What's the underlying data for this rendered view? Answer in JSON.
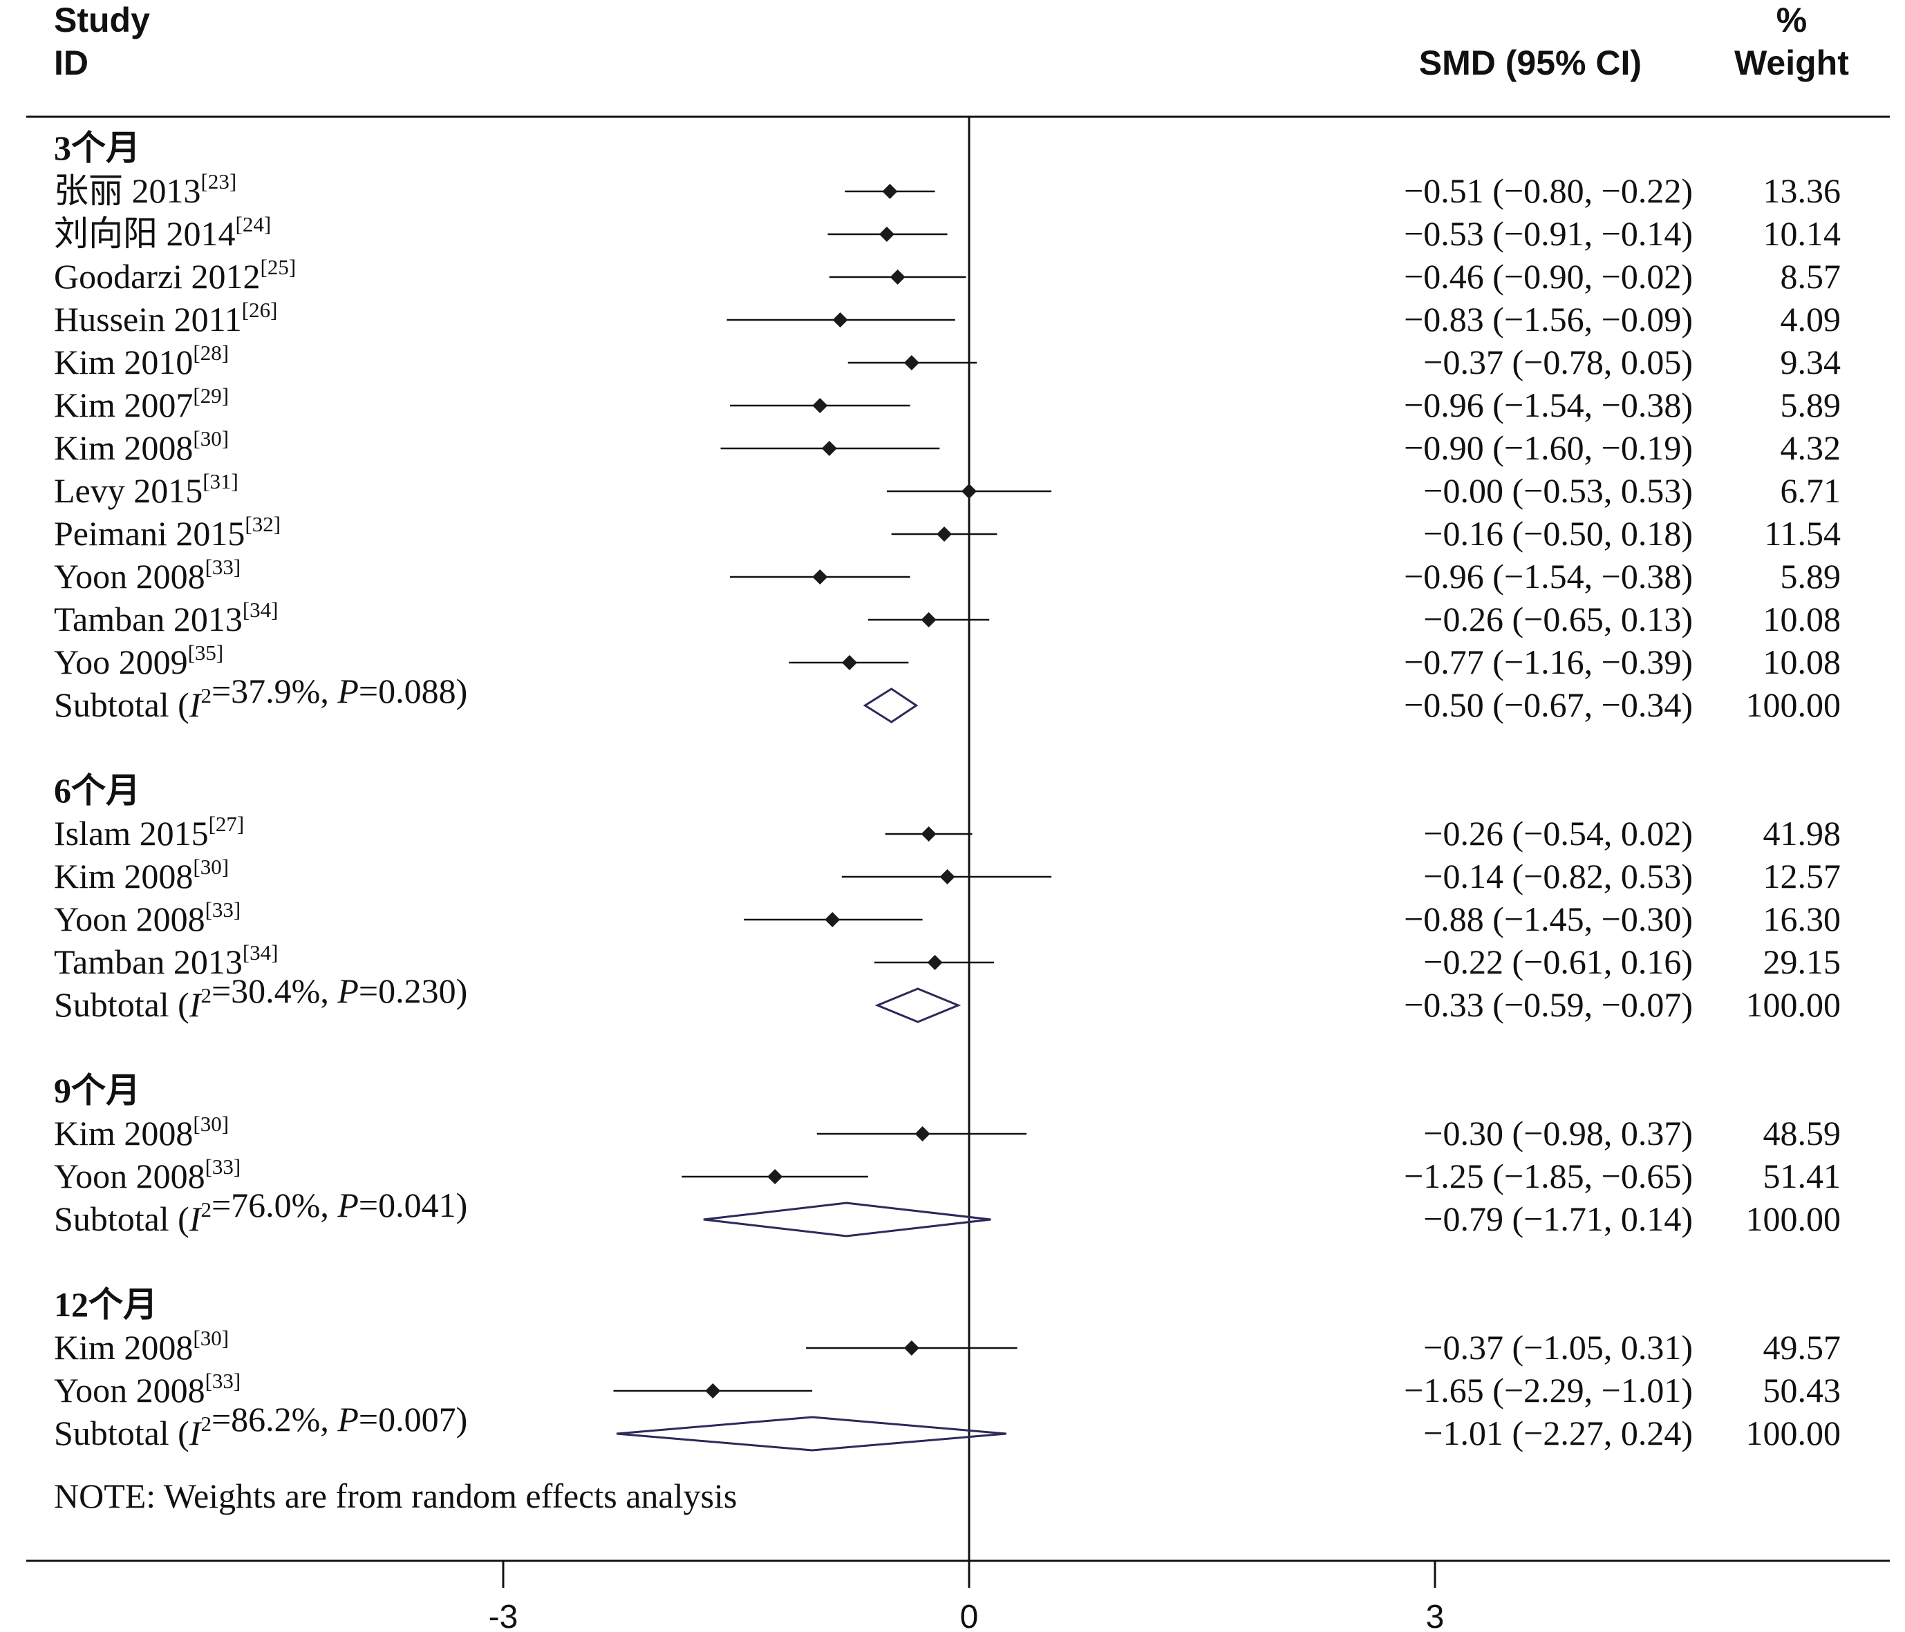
{
  "chart_data": {
    "type": "forest",
    "headers": {
      "study_line1": "Study",
      "study_line2": "ID",
      "effect": "SMD (95% CI)",
      "weight_line1": "%",
      "weight_line2": "Weight"
    },
    "xaxis": {
      "ticks": [
        -3,
        0,
        3
      ],
      "tick_labels": [
        "-3",
        "0",
        "3"
      ],
      "null_line": 0
    },
    "groups": [
      {
        "name": "3个月",
        "studies": [
          {
            "label": "张丽 2013",
            "ref": "[23]",
            "smd": -0.51,
            "lo": -0.8,
            "hi": -0.22,
            "ci_text": "−0.51 (−0.80, −0.22)",
            "weight": "13.36"
          },
          {
            "label": "刘向阳 2014",
            "ref": "[24]",
            "smd": -0.53,
            "lo": -0.91,
            "hi": -0.14,
            "ci_text": "−0.53 (−0.91, −0.14)",
            "weight": "10.14"
          },
          {
            "label": "Goodarzi 2012",
            "ref": "[25]",
            "smd": -0.46,
            "lo": -0.9,
            "hi": -0.02,
            "ci_text": "−0.46 (−0.90, −0.02)",
            "weight": "8.57"
          },
          {
            "label": "Hussein 2011",
            "ref": "[26]",
            "smd": -0.83,
            "lo": -1.56,
            "hi": -0.09,
            "ci_text": "−0.83 (−1.56, −0.09)",
            "weight": "4.09"
          },
          {
            "label": "Kim 2010",
            "ref": "[28]",
            "smd": -0.37,
            "lo": -0.78,
            "hi": 0.05,
            "ci_text": "−0.37 (−0.78, 0.05)",
            "weight": "9.34"
          },
          {
            "label": "Kim 2007",
            "ref": "[29]",
            "smd": -0.96,
            "lo": -1.54,
            "hi": -0.38,
            "ci_text": "−0.96 (−1.54, −0.38)",
            "weight": "5.89"
          },
          {
            "label": "Kim 2008",
            "ref": "[30]",
            "smd": -0.9,
            "lo": -1.6,
            "hi": -0.19,
            "ci_text": "−0.90 (−1.60, −0.19)",
            "weight": "4.32"
          },
          {
            "label": "Levy 2015",
            "ref": "[31]",
            "smd": 0.0,
            "lo": -0.53,
            "hi": 0.53,
            "ci_text": "−0.00 (−0.53, 0.53)",
            "weight": "6.71"
          },
          {
            "label": "Peimani 2015",
            "ref": "[32]",
            "smd": -0.16,
            "lo": -0.5,
            "hi": 0.18,
            "ci_text": "−0.16 (−0.50, 0.18)",
            "weight": "11.54"
          },
          {
            "label": "Yoon 2008",
            "ref": "[33]",
            "smd": -0.96,
            "lo": -1.54,
            "hi": -0.38,
            "ci_text": "−0.96 (−1.54, −0.38)",
            "weight": "5.89"
          },
          {
            "label": "Tamban 2013",
            "ref": "[34]",
            "smd": -0.26,
            "lo": -0.65,
            "hi": 0.13,
            "ci_text": "−0.26 (−0.65, 0.13)",
            "weight": "10.08"
          },
          {
            "label": "Yoo 2009",
            "ref": "[35]",
            "smd": -0.77,
            "lo": -1.16,
            "hi": -0.39,
            "ci_text": "−0.77 (−1.16, −0.39)",
            "weight": "10.08"
          }
        ],
        "subtotal": {
          "label_pre": "Subtotal (",
          "i2_sym": "I",
          "i2_sup": "2",
          "i2_val": "=37.9%, ",
          "p_sym": "P",
          "p_val": "=0.088)",
          "smd": -0.5,
          "lo": -0.67,
          "hi": -0.34,
          "ci_text": "−0.50 (−0.67, −0.34)",
          "weight": "100.00"
        }
      },
      {
        "name": "6个月",
        "studies": [
          {
            "label": "Islam 2015",
            "ref": "[27]",
            "smd": -0.26,
            "lo": -0.54,
            "hi": 0.02,
            "ci_text": "−0.26 (−0.54, 0.02)",
            "weight": "41.98"
          },
          {
            "label": "Kim 2008",
            "ref": "[30]",
            "smd": -0.14,
            "lo": -0.82,
            "hi": 0.53,
            "ci_text": "−0.14 (−0.82, 0.53)",
            "weight": "12.57"
          },
          {
            "label": "Yoon 2008",
            "ref": "[33]",
            "smd": -0.88,
            "lo": -1.45,
            "hi": -0.3,
            "ci_text": "−0.88 (−1.45, −0.30)",
            "weight": "16.30"
          },
          {
            "label": "Tamban 2013",
            "ref": "[34]",
            "smd": -0.22,
            "lo": -0.61,
            "hi": 0.16,
            "ci_text": "−0.22 (−0.61, 0.16)",
            "weight": "29.15"
          }
        ],
        "subtotal": {
          "label_pre": "Subtotal (",
          "i2_sym": "I",
          "i2_sup": "2",
          "i2_val": "=30.4%, ",
          "p_sym": "P",
          "p_val": "=0.230)",
          "smd": -0.33,
          "lo": -0.59,
          "hi": -0.07,
          "ci_text": "−0.33 (−0.59, −0.07)",
          "weight": "100.00"
        }
      },
      {
        "name": "9个月",
        "studies": [
          {
            "label": "Kim 2008",
            "ref": "[30]",
            "smd": -0.3,
            "lo": -0.98,
            "hi": 0.37,
            "ci_text": "−0.30 (−0.98, 0.37)",
            "weight": "48.59"
          },
          {
            "label": "Yoon 2008",
            "ref": "[33]",
            "smd": -1.25,
            "lo": -1.85,
            "hi": -0.65,
            "ci_text": "−1.25 (−1.85, −0.65)",
            "weight": "51.41"
          }
        ],
        "subtotal": {
          "label_pre": "Subtotal (",
          "i2_sym": "I",
          "i2_sup": "2",
          "i2_val": "=76.0%, ",
          "p_sym": "P",
          "p_val": "=0.041)",
          "smd": -0.79,
          "lo": -1.71,
          "hi": 0.14,
          "ci_text": "−0.79 (−1.71, 0.14)",
          "weight": "100.00"
        }
      },
      {
        "name": "12个月",
        "studies": [
          {
            "label": "Kim 2008",
            "ref": "[30]",
            "smd": -0.37,
            "lo": -1.05,
            "hi": 0.31,
            "ci_text": "−0.37 (−1.05, 0.31)",
            "weight": "49.57"
          },
          {
            "label": "Yoon 2008",
            "ref": "[33]",
            "smd": -1.65,
            "lo": -2.29,
            "hi": -1.01,
            "ci_text": "−1.65 (−2.29, −1.01)",
            "weight": "50.43"
          }
        ],
        "subtotal": {
          "label_pre": "Subtotal (",
          "i2_sym": "I",
          "i2_sup": "2",
          "i2_val": "=86.2%, ",
          "p_sym": "P",
          "p_val": "=0.007)",
          "smd": -1.01,
          "lo": -2.27,
          "hi": 0.24,
          "ci_text": "−1.01 (−2.27, 0.24)",
          "weight": "100.00"
        }
      }
    ],
    "note": "NOTE: Weights are from random effects analysis",
    "colors": {
      "text": "#111111",
      "marker": "#1a1a1a",
      "diamond": "#2b2a5a",
      "line": "#111111"
    }
  }
}
